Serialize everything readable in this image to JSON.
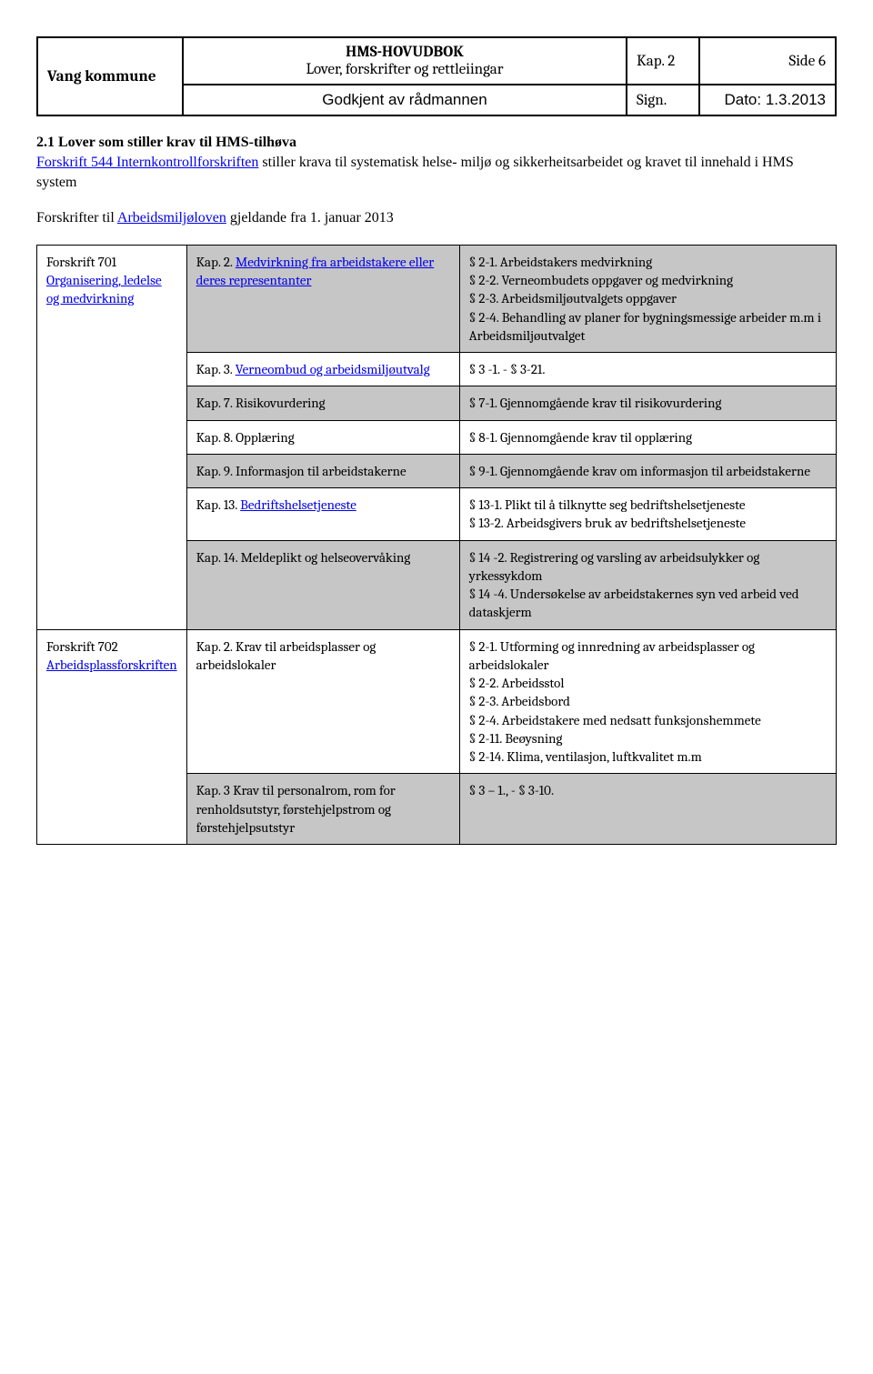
{
  "header": {
    "org": "Vang kommune",
    "title_line1": "HMS-HOVUDBOK",
    "title_line2": "Lover, forskrifter og rettleiingar",
    "kap": "Kap. 2",
    "side": "Side 6",
    "approved": "Godkjent av rådmannen",
    "sign": "Sign.",
    "dato": "Dato: 1.3.2013"
  },
  "section": {
    "number_title": "2.1   Lover som stiller krav til HMS-tilhøva",
    "link1": "Forskrift 544 Internkontrollforskriften",
    "body1_rest": " stiller krava til systematisk helse- miljø og sikkerheitsarbeidet og kravet til innehald i HMS system",
    "body2_a": "Forskrifter til ",
    "link2": "Arbeidsmiljøloven",
    "body2_b": " gjeldande fra 1. januar 2013"
  },
  "rows": [
    {
      "left_label": "Forskrift 701",
      "left_link": "Organisering, ledelse og medvirkning",
      "mid_prefix": "Kap. 2. ",
      "mid_link": "Medvirkning fra arbeidstakere eller deres representanter",
      "mid_suffix": "",
      "right": "§ 2-1. Arbeidstakers medvirkning\n§ 2-2. Verneombudets oppgaver og medvirkning\n§ 2-3. Arbeidsmiljøutvalgets oppgaver\n§ 2-4. Behandling av planer for bygningsmessige arbeider m.m i Arbeidsmiljøutvalget",
      "shaded": true,
      "has_left": true
    },
    {
      "mid_prefix": "Kap. 3. ",
      "mid_link": "Verneombud og arbeidsmiljøutvalg",
      "mid_suffix": "",
      "right": "§ 3 -1. - § 3-21.",
      "shaded": false
    },
    {
      "mid_prefix": "Kap. 7. Risikovurdering",
      "mid_link": "",
      "mid_suffix": "",
      "right": "§ 7-1. Gjennomgående krav til risikovurdering",
      "shaded": true
    },
    {
      "mid_prefix": "Kap. 8. Opplæring",
      "mid_link": "",
      "mid_suffix": "",
      "right": "§ 8-1. Gjennomgående krav til opplæring",
      "shaded": false
    },
    {
      "mid_prefix": "Kap. 9. Informasjon til arbeidstakerne",
      "mid_link": "",
      "mid_suffix": "",
      "right": "§ 9-1. Gjennomgående krav om informasjon til arbeidstakerne",
      "shaded": true
    },
    {
      "mid_prefix": "Kap. 13. ",
      "mid_link": "Bedriftshelsetjeneste",
      "mid_suffix": "",
      "right": "§ 13-1. Plikt til å tilknytte seg bedriftshelsetjeneste\n§ 13-2. Arbeidsgivers bruk av bedriftshelsetjeneste",
      "shaded": false
    },
    {
      "mid_prefix": "Kap. 14. Meldeplikt og helseovervåking",
      "mid_link": "",
      "mid_suffix": "",
      "right": "§ 14 -2. Registrering og varsling av arbeidsulykker og yrkessykdom\n§ 14 -4. Undersøkelse av arbeidstakernes syn ved arbeid ved dataskjerm",
      "shaded": true
    },
    {
      "left_label": "Forskrift 702",
      "left_link": "Arbeidsplassforskriften",
      "mid_prefix": "Kap. 2. Krav til arbeidsplasser og arbeidslokaler",
      "mid_link": "",
      "mid_suffix": "",
      "right": "§ 2-1. Utforming og innredning av arbeidsplasser og arbeidslokaler\n§ 2-2. Arbeidsstol\n§ 2-3. Arbeidsbord\n§ 2-4. Arbeidstakere med nedsatt funksjonshemmete\n§ 2-11. Beøysning\n§ 2-14. Klima, ventilasjon, luftkvalitet m.m",
      "shaded": false,
      "has_left": true
    },
    {
      "mid_prefix": "Kap. 3 Krav til personalrom, rom for renholdsutstyr, førstehjelpstrom og førstehjelpsutstyr",
      "mid_link": "",
      "mid_suffix": "",
      "right": "§ 3 – 1., - § 3-10.",
      "shaded": true
    }
  ]
}
